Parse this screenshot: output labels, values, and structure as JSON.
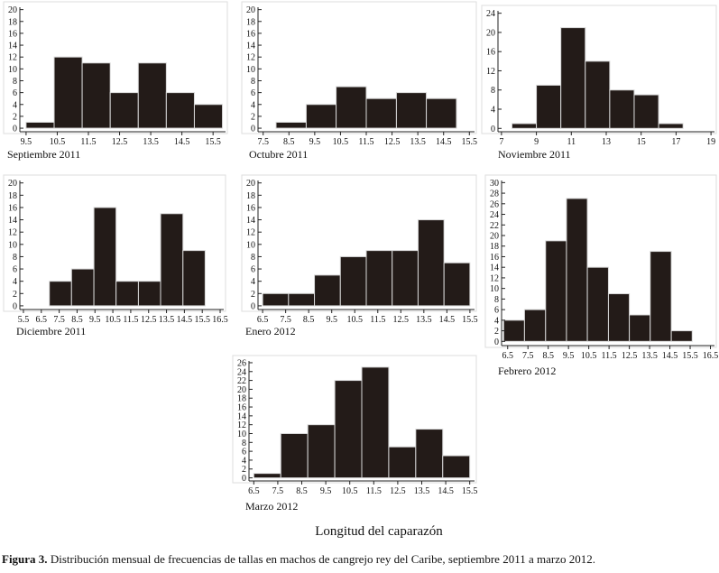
{
  "chart_data": [
    {
      "type": "histogram",
      "title": "Septiembre 2011",
      "bins": [
        9.5,
        10.4,
        11.3,
        12.2,
        13.1,
        14.0,
        14.9,
        15.8
      ],
      "values": [
        1,
        12,
        11,
        6,
        11,
        6,
        4
      ],
      "color": "#231b18",
      "xlim": [
        9.3,
        15.9
      ],
      "xticks": [
        9.5,
        10.5,
        11.5,
        12.5,
        13.5,
        14.5,
        15.5
      ],
      "ylim": [
        -0.6,
        20.4
      ],
      "yticks": [
        0,
        2,
        4,
        6,
        8,
        10,
        12,
        14,
        16,
        18,
        20
      ]
    },
    {
      "type": "histogram",
      "title": "Octubre 2011",
      "bins": [
        8.0,
        9.17,
        10.33,
        11.5,
        12.67,
        13.83,
        15.0
      ],
      "values": [
        1,
        4,
        7,
        5,
        6,
        5
      ],
      "color": "#231b18",
      "xlim": [
        7.3,
        15.7
      ],
      "xticks": [
        7.5,
        8.5,
        9.5,
        10.5,
        11.5,
        12.5,
        13.5,
        14.5,
        15.5
      ],
      "ylim": [
        -0.6,
        20.4
      ],
      "yticks": [
        0,
        2,
        4,
        6,
        8,
        10,
        12,
        14,
        16,
        18,
        20
      ]
    },
    {
      "type": "histogram",
      "title": "Noviembre 2011",
      "bins": [
        7.6,
        9.0,
        10.4,
        11.8,
        13.2,
        14.6,
        16.0,
        17.4
      ],
      "values": [
        1,
        9,
        21,
        14,
        8,
        7,
        1
      ],
      "color": "#231b18",
      "xlim": [
        6.8,
        19.2
      ],
      "xticks": [
        7,
        9,
        11,
        13,
        15,
        17,
        19
      ],
      "ylim": [
        -0.7,
        24.5
      ],
      "yticks": [
        0,
        4,
        8,
        12,
        16,
        20,
        24
      ]
    },
    {
      "type": "histogram",
      "title": "Diciembre 2011",
      "bins": [
        6.95,
        8.19,
        9.44,
        10.68,
        11.93,
        13.17,
        14.42,
        15.66
      ],
      "values": [
        4,
        6,
        16,
        4,
        4,
        15,
        9
      ],
      "color": "#231b18",
      "xlim": [
        5.3,
        16.7
      ],
      "xticks": [
        5.5,
        6.5,
        7.5,
        8.5,
        9.5,
        10.5,
        11.5,
        12.5,
        13.5,
        14.5,
        15.5,
        16.5
      ],
      "ylim": [
        -0.6,
        20.4
      ],
      "yticks": [
        0,
        2,
        4,
        6,
        8,
        10,
        12,
        14,
        16,
        18,
        20
      ]
    },
    {
      "type": "histogram",
      "title": "Enero 2012",
      "bins": [
        6.5,
        7.625,
        8.75,
        9.875,
        11.0,
        12.125,
        13.25,
        14.375,
        15.5
      ],
      "values": [
        2,
        2,
        5,
        8,
        9,
        9,
        14,
        7
      ],
      "color": "#231b18",
      "xlim": [
        6.3,
        15.7
      ],
      "xticks": [
        6.5,
        7.5,
        8.5,
        9.5,
        10.5,
        11.5,
        12.5,
        13.5,
        14.5,
        15.5
      ],
      "ylim": [
        -0.6,
        20.4
      ],
      "yticks": [
        0,
        2,
        4,
        6,
        8,
        10,
        12,
        14,
        16,
        18,
        20
      ]
    },
    {
      "type": "histogram",
      "title": "Febrero 2012",
      "bins": [
        6.3,
        7.33,
        8.37,
        9.4,
        10.43,
        11.47,
        12.5,
        13.53,
        14.57,
        15.6
      ],
      "values": [
        4,
        6,
        19,
        27,
        14,
        9,
        5,
        17,
        2
      ],
      "color": "#231b18",
      "xlim": [
        6.2,
        16.7
      ],
      "xticks": [
        6.5,
        7.5,
        8.5,
        9.5,
        10.5,
        11.5,
        12.5,
        13.5,
        14.5,
        15.5,
        16.5
      ],
      "ylim": [
        -0.8,
        30.4
      ],
      "yticks": [
        0,
        2,
        4,
        6,
        8,
        10,
        12,
        14,
        16,
        18,
        20,
        22,
        24,
        26,
        28,
        30
      ]
    },
    {
      "type": "histogram",
      "title": "Marzo 2012",
      "bins": [
        6.5,
        7.625,
        8.75,
        9.875,
        11.0,
        12.125,
        13.25,
        14.375,
        15.5
      ],
      "values": [
        1,
        10,
        12,
        22,
        25,
        7,
        11,
        5
      ],
      "color": "#231b18",
      "xlim": [
        6.3,
        15.7
      ],
      "xticks": [
        6.5,
        7.5,
        8.5,
        9.5,
        10.5,
        11.5,
        12.5,
        13.5,
        14.5,
        15.5
      ],
      "ylim": [
        -0.7,
        26.4
      ],
      "yticks": [
        0,
        2,
        4,
        6,
        8,
        10,
        12,
        14,
        16,
        18,
        20,
        22,
        24,
        26
      ]
    }
  ],
  "axis_label": "Longitud del caparazón",
  "caption": {
    "label": "Figura 3.",
    "text": "Distribución mensual de frecuencias de tallas en machos de cangrejo rey del Caribe, septiembre 2011 a marzo 2012."
  }
}
